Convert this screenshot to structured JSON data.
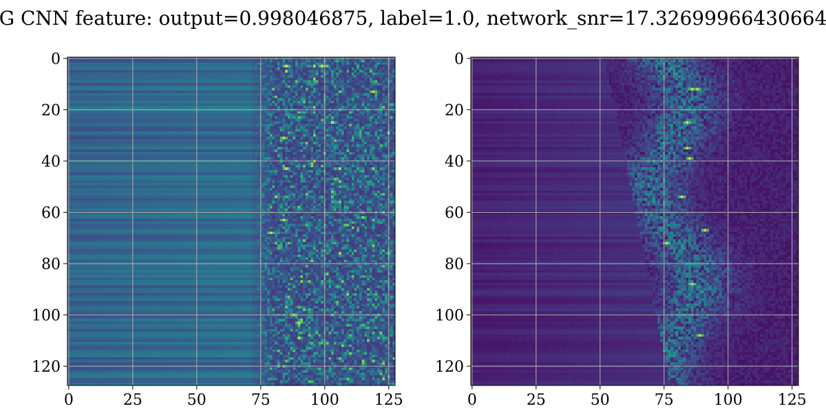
{
  "title": "G CNN feature: output=0.998046875, label=1.0, network_snr=17.32699966430664",
  "chart_data": [
    {
      "type": "heatmap",
      "colormap": "viridis",
      "grid": true,
      "rows": 128,
      "cols": 128,
      "xlim": [
        0,
        127
      ],
      "ylim": [
        127,
        0
      ],
      "xticks": [
        0,
        25,
        50,
        75,
        100,
        125
      ],
      "yticks": [
        0,
        20,
        40,
        60,
        80,
        100,
        120
      ],
      "xtick_labels": [
        "0",
        "25",
        "50",
        "75",
        "100",
        "125"
      ],
      "ytick_labels": [
        "0",
        "20",
        "40",
        "60",
        "80",
        "100",
        "120"
      ],
      "description": "Left panel: rows show a roughly constant mid-level value from columns 0-70, then a noisy high-variance region from columns ~75-127 with yellow peaks near rows 3, 31, 43, 63, 68, 103."
    },
    {
      "type": "heatmap",
      "colormap": "viridis",
      "grid": true,
      "rows": 128,
      "cols": 128,
      "xlim": [
        0,
        127
      ],
      "ylim": [
        127,
        0
      ],
      "xticks": [
        0,
        25,
        50,
        75,
        100,
        125
      ],
      "yticks": [
        0,
        20,
        40,
        60,
        80,
        100,
        120
      ],
      "xtick_labels": [
        "0",
        "25",
        "50",
        "75",
        "100",
        "125"
      ],
      "ytick_labels": [
        "0",
        "20",
        "40",
        "60",
        "80",
        "100",
        "120"
      ],
      "description": "Right panel: mostly dark purple background on the left, with a chirp-like diagonal band of brighter pixels sweeping from around column 50 at top toward column 75-90, bright spots near rows 12, 35, 39, 54, 72, 88, 108."
    }
  ]
}
